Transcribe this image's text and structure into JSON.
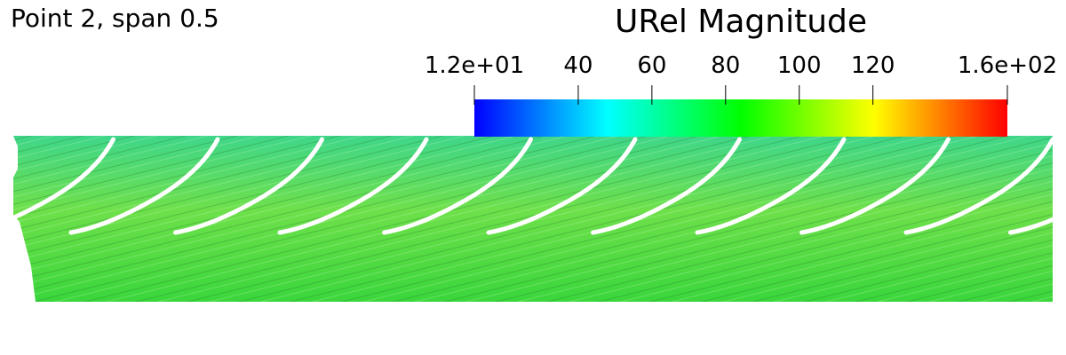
{
  "title": "Point 2, span 0.5",
  "colorbar": {
    "title": "URel Magnitude",
    "range": [
      11.8,
      156.5
    ],
    "ticks": [
      {
        "value": 11.8,
        "label": "1.2e+01"
      },
      40,
      60,
      80,
      100,
      120,
      {
        "value": 156.5,
        "label": "1.6e+02"
      }
    ],
    "colormap": [
      "#0000ff",
      "#00ffff",
      "#00ff00",
      "#ffff00",
      "#ff0000"
    ]
  }
}
